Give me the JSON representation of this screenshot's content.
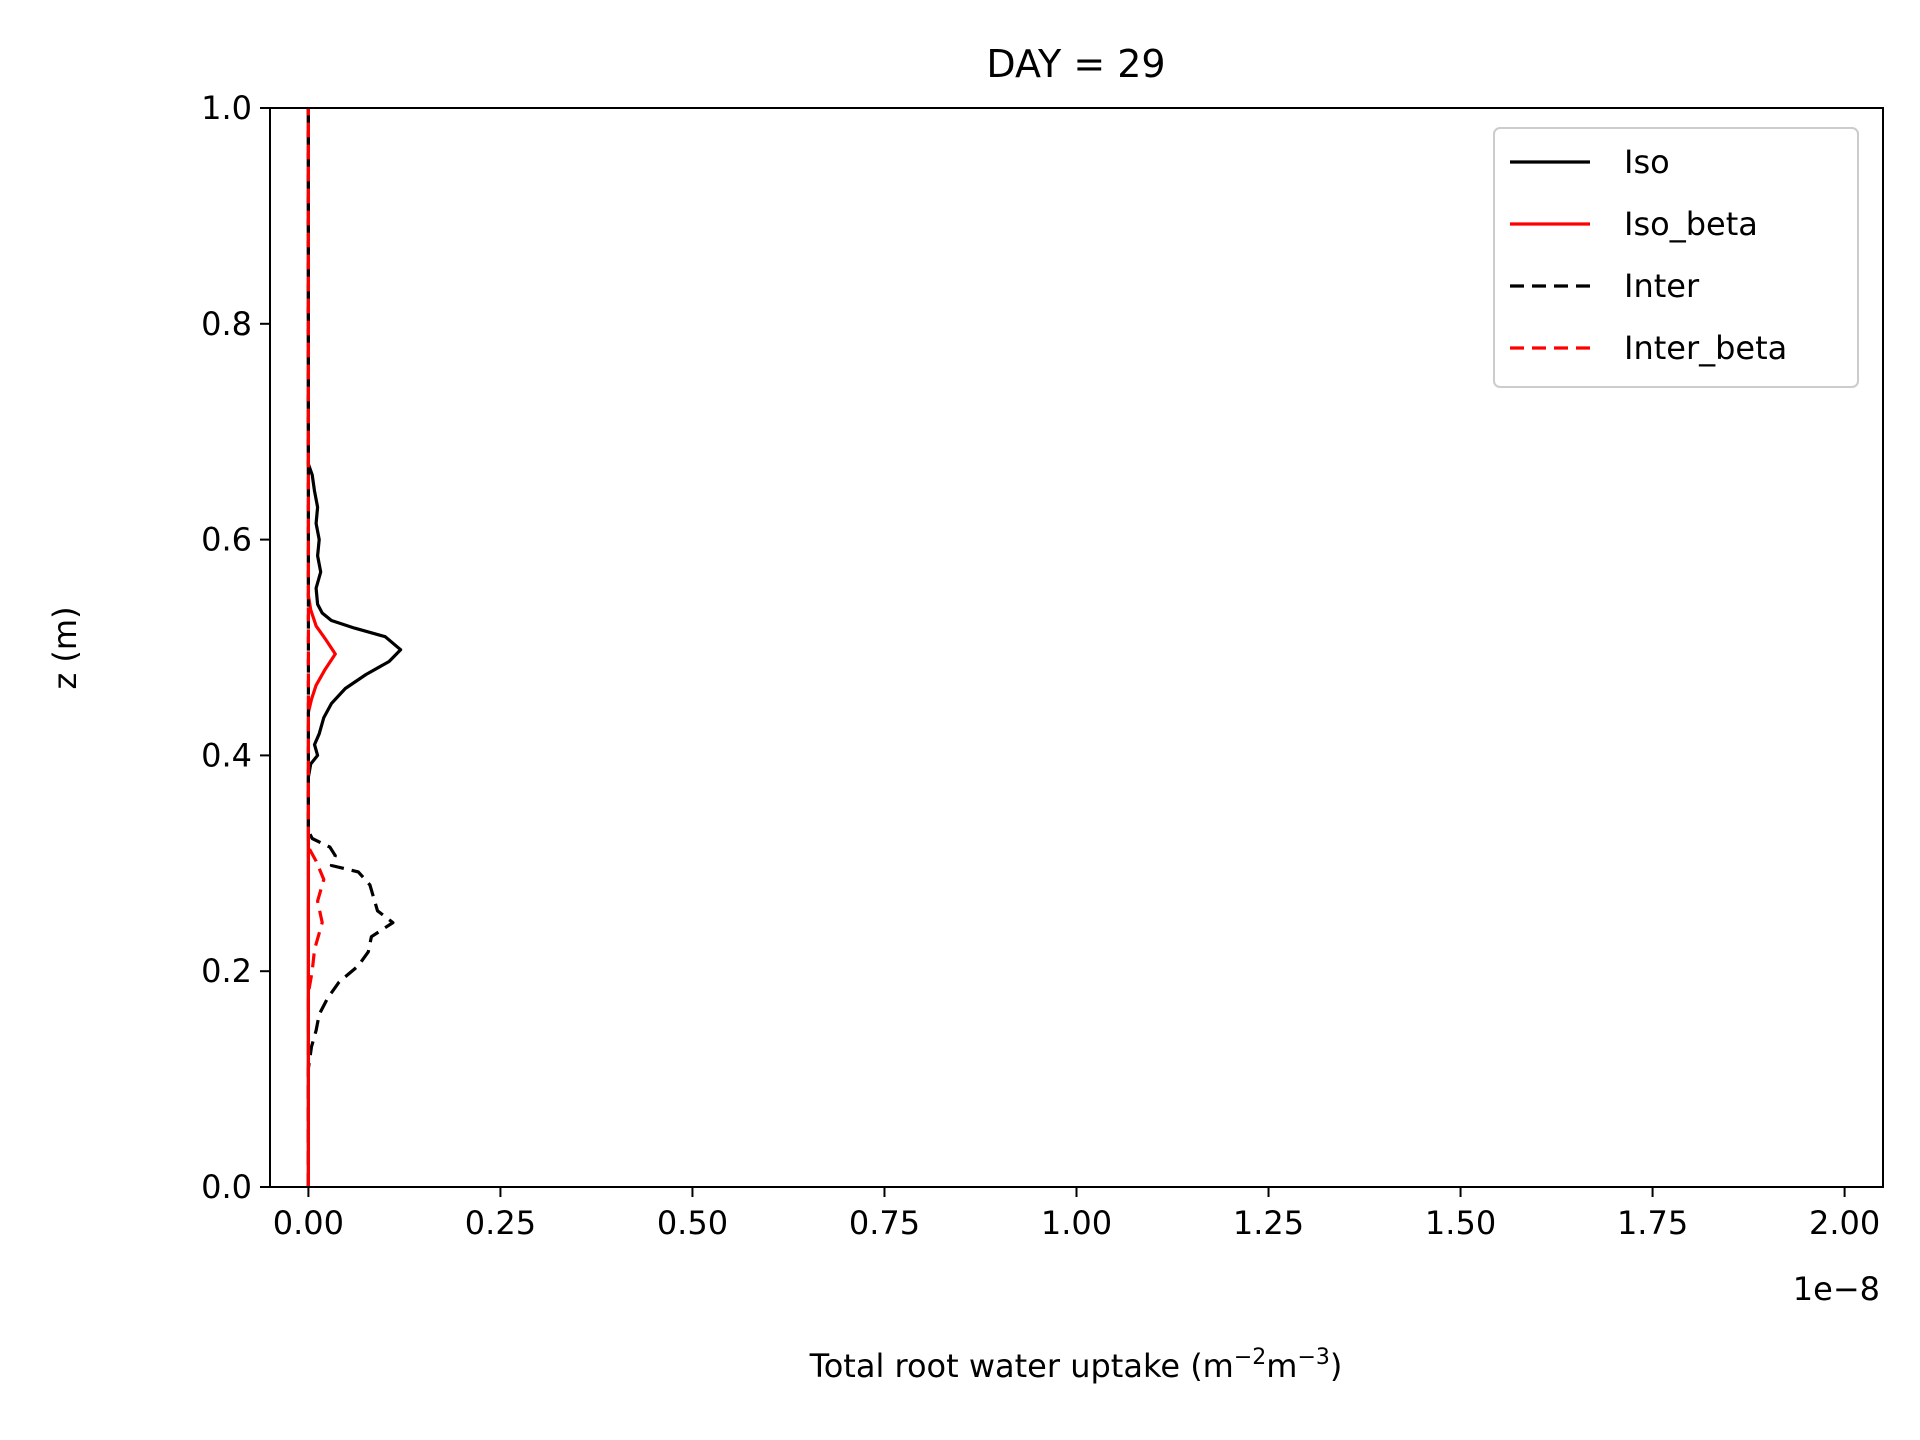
{
  "chart_data": {
    "type": "line",
    "title": "DAY = 29",
    "xlabel": {
      "main": "Total root water uptake (m",
      "sup1": "−2",
      "mid": "m",
      "sup2": "−3",
      "end": ")"
    },
    "ylabel": "z (m)",
    "x_offset_label": "1e−8",
    "xlim": [
      -0.05,
      2.05
    ],
    "ylim": [
      0.0,
      1.0
    ],
    "x_ticks": [
      0.0,
      0.25,
      0.5,
      0.75,
      1.0,
      1.25,
      1.5,
      1.75,
      2.0
    ],
    "x_tick_labels": [
      "0.00",
      "0.25",
      "0.50",
      "0.75",
      "1.00",
      "1.25",
      "1.50",
      "1.75",
      "2.00"
    ],
    "y_ticks": [
      0.0,
      0.2,
      0.4,
      0.6,
      0.8,
      1.0
    ],
    "y_tick_labels": [
      "0.0",
      "0.2",
      "0.4",
      "0.6",
      "0.8",
      "1.0"
    ],
    "grid": false,
    "legend_position": "top-right",
    "series": [
      {
        "name": "Iso",
        "color": "#000000",
        "dash": "solid",
        "points": [
          [
            0.0,
            0.0
          ],
          [
            0.0,
            0.38
          ],
          [
            0.003,
            0.392
          ],
          [
            0.012,
            0.4
          ],
          [
            0.008,
            0.41
          ],
          [
            0.014,
            0.42
          ],
          [
            0.02,
            0.435
          ],
          [
            0.03,
            0.448
          ],
          [
            0.048,
            0.462
          ],
          [
            0.075,
            0.475
          ],
          [
            0.105,
            0.487
          ],
          [
            0.12,
            0.498
          ],
          [
            0.1,
            0.51
          ],
          [
            0.06,
            0.518
          ],
          [
            0.03,
            0.525
          ],
          [
            0.018,
            0.532
          ],
          [
            0.012,
            0.54
          ],
          [
            0.01,
            0.555
          ],
          [
            0.016,
            0.57
          ],
          [
            0.012,
            0.585
          ],
          [
            0.014,
            0.6
          ],
          [
            0.01,
            0.615
          ],
          [
            0.012,
            0.63
          ],
          [
            0.008,
            0.645
          ],
          [
            0.005,
            0.66
          ],
          [
            0.0,
            0.67
          ],
          [
            0.0,
            1.0
          ]
        ]
      },
      {
        "name": "Iso_beta",
        "color": "#ff0000",
        "dash": "solid",
        "points": [
          [
            0.0,
            0.0
          ],
          [
            0.0,
            0.44
          ],
          [
            0.004,
            0.452
          ],
          [
            0.01,
            0.465
          ],
          [
            0.022,
            0.48
          ],
          [
            0.035,
            0.494
          ],
          [
            0.022,
            0.508
          ],
          [
            0.01,
            0.52
          ],
          [
            0.003,
            0.535
          ],
          [
            0.0,
            0.548
          ],
          [
            0.0,
            1.0
          ]
        ]
      },
      {
        "name": "Inter",
        "color": "#000000",
        "dash": "dashed",
        "points": [
          [
            0.0,
            0.0
          ],
          [
            0.0,
            0.11
          ],
          [
            0.004,
            0.13
          ],
          [
            0.01,
            0.145
          ],
          [
            0.014,
            0.16
          ],
          [
            0.025,
            0.175
          ],
          [
            0.04,
            0.19
          ],
          [
            0.065,
            0.205
          ],
          [
            0.078,
            0.218
          ],
          [
            0.082,
            0.232
          ],
          [
            0.11,
            0.245
          ],
          [
            0.09,
            0.256
          ],
          [
            0.085,
            0.268
          ],
          [
            0.08,
            0.28
          ],
          [
            0.065,
            0.292
          ],
          [
            0.03,
            0.298
          ],
          [
            0.035,
            0.307
          ],
          [
            0.028,
            0.315
          ],
          [
            0.005,
            0.323
          ],
          [
            0.0,
            0.33
          ],
          [
            0.0,
            1.0
          ]
        ]
      },
      {
        "name": "Inter_beta",
        "color": "#ff0000",
        "dash": "dashed",
        "points": [
          [
            0.0,
            0.0
          ],
          [
            0.0,
            0.18
          ],
          [
            0.005,
            0.2
          ],
          [
            0.008,
            0.22
          ],
          [
            0.018,
            0.245
          ],
          [
            0.012,
            0.265
          ],
          [
            0.02,
            0.285
          ],
          [
            0.01,
            0.302
          ],
          [
            0.0,
            0.315
          ],
          [
            0.0,
            1.0
          ]
        ]
      }
    ]
  }
}
